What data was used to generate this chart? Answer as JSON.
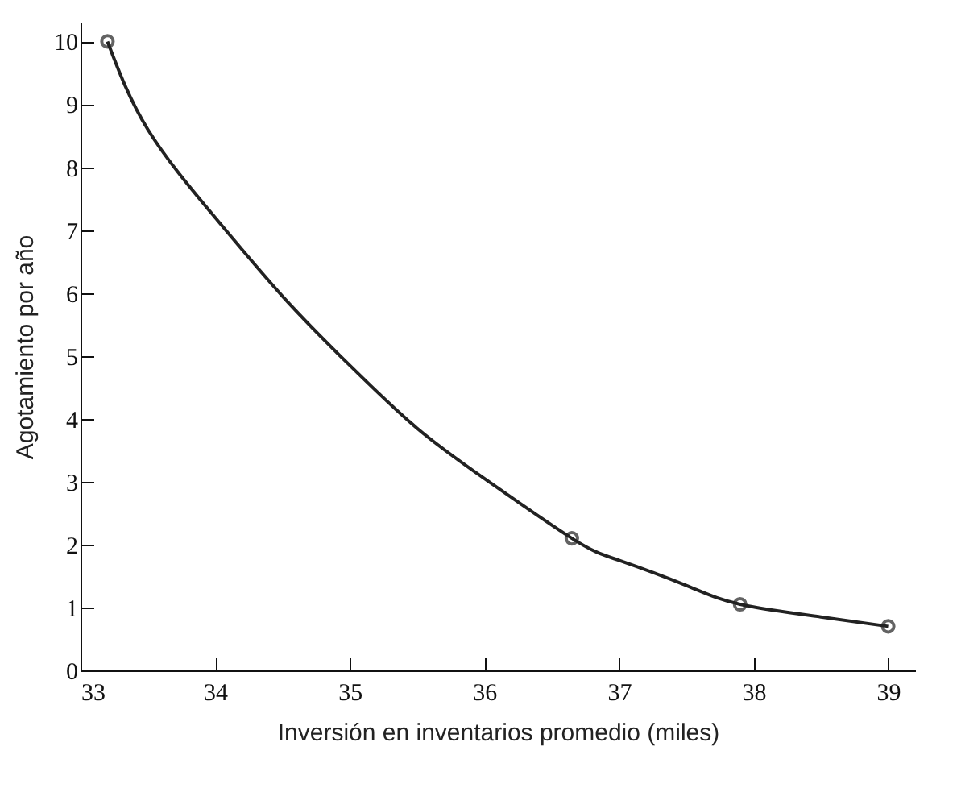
{
  "chart_data": {
    "type": "line",
    "xlabel": "Inversión en inventarios promedio (miles)",
    "ylabel": "Agotamiento por año",
    "xlim": [
      33,
      39.2
    ],
    "ylim": [
      0,
      10.3
    ],
    "xticks": [
      33,
      34,
      35,
      36,
      37,
      38,
      39
    ],
    "yticks": [
      0,
      1,
      2,
      3,
      4,
      5,
      6,
      7,
      8,
      9,
      10
    ],
    "series": [
      {
        "color": "#222222",
        "marker": "none",
        "x": [
          33.2,
          33.5,
          34,
          34.5,
          35,
          35.5,
          36,
          36.65,
          37,
          37.5,
          37.9,
          38.5,
          39
        ],
        "values": [
          10,
          8.6,
          7.2,
          5.95,
          4.85,
          3.85,
          3.05,
          2.1,
          1.75,
          1.35,
          1.05,
          0.85,
          0.7
        ]
      },
      {
        "type": "scatter",
        "color": "#222222",
        "marker": "circle",
        "x": [
          33.2,
          36.65,
          37.9,
          39
        ],
        "values": [
          10,
          2.1,
          1.05,
          0.7
        ]
      }
    ]
  }
}
